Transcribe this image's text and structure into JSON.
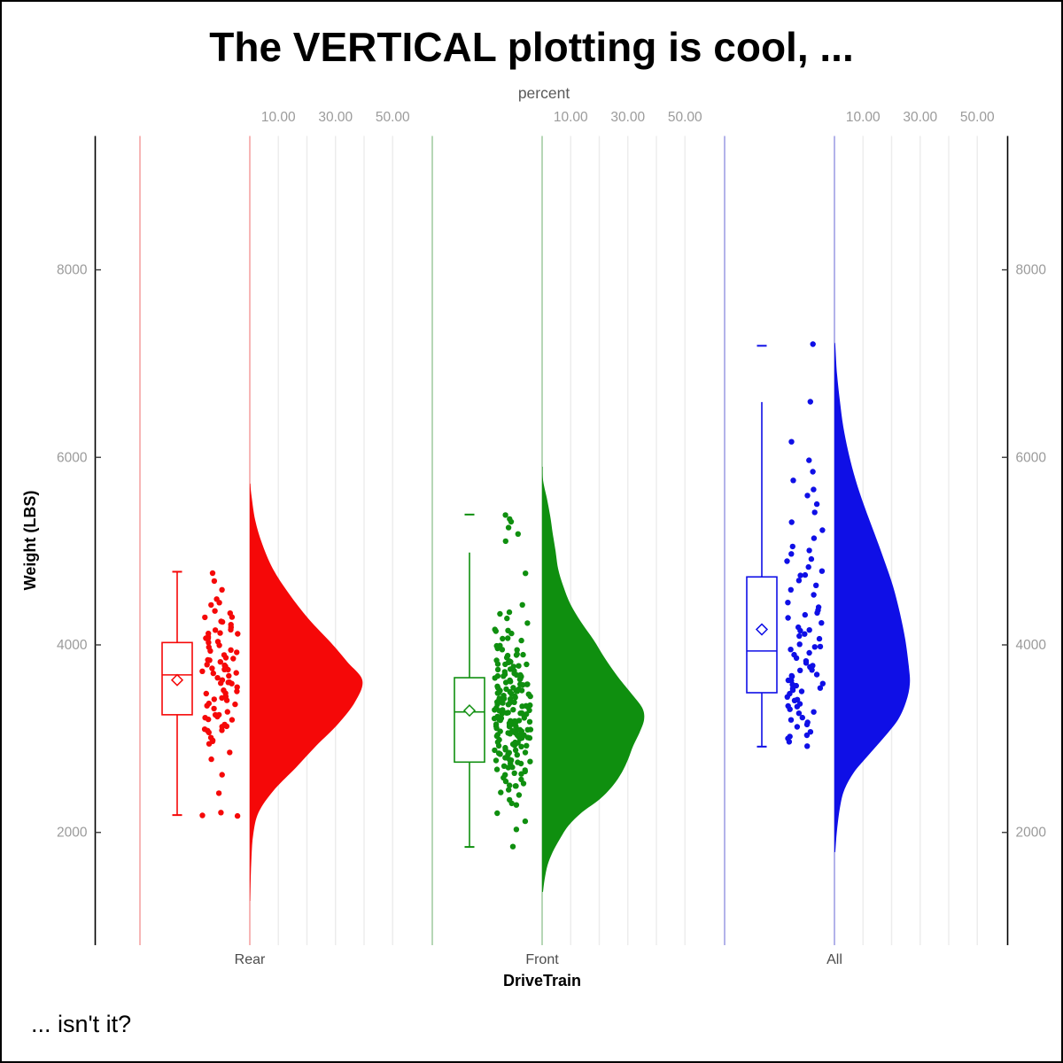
{
  "title": "The VERTICAL plotting is cool, ...",
  "footnote": "... isn't it?",
  "style": {
    "background": "#ffffff",
    "axis_line": "#000000",
    "gridline": "#ececec",
    "tick_label_color": "#9b9b9b",
    "top_axis_title_color": "#5a5a5a",
    "category_label_color": "#4c4c4c",
    "axis_title_color": "#000000",
    "box_fill": "#ffffff"
  },
  "chart_data": {
    "type": "raincloud (half-violin + box plot + jittered points)",
    "orientation": "vertical",
    "x_axis": {
      "label": "DriveTrain",
      "categories": [
        "Rear",
        "Front",
        "All"
      ]
    },
    "y_axis": {
      "label": "Weight (LBS)",
      "ticks": [
        2000,
        4000,
        6000,
        8000
      ],
      "shown_on": "both sides"
    },
    "top_axis": {
      "label": "percent",
      "tick_values": [
        10,
        30,
        50
      ],
      "tick_labels": [
        "10.00",
        "30.00",
        "50.00"
      ],
      "gridline_values": [
        10,
        20,
        30,
        40,
        50
      ],
      "repeats_per_category": true
    },
    "groups": [
      {
        "name": "Rear",
        "color": "#f50808",
        "tint": "#f7b6b6",
        "box": {
          "low": 2185,
          "q1": 3255,
          "median": 3680,
          "q3": 4025,
          "high": 4780,
          "cap_high": 4780,
          "mean": 3625
        },
        "violin_profile_weight_pct": [
          [
            5720,
            0.15
          ],
          [
            5590,
            0.6
          ],
          [
            5330,
            1.9
          ],
          [
            5080,
            4.3
          ],
          [
            4810,
            8.1
          ],
          [
            4550,
            13.6
          ],
          [
            4280,
            20.5
          ],
          [
            4020,
            28.5
          ],
          [
            3820,
            34.1
          ],
          [
            3620,
            39.4
          ],
          [
            3395,
            36.9
          ],
          [
            3160,
            31.0
          ],
          [
            2925,
            23.3
          ],
          [
            2690,
            16.1
          ],
          [
            2450,
            8.4
          ],
          [
            2215,
            3.1
          ],
          [
            1980,
            1.2
          ],
          [
            1740,
            0.6
          ],
          [
            1505,
            0.3
          ],
          [
            1270,
            0.1
          ]
        ],
        "jitter": {
          "n": 90,
          "seed": 7,
          "quantiles": [
            [
              0,
              2165
            ],
            [
              0.022,
              2200
            ],
            [
              0.033,
              2395
            ],
            [
              0.05,
              2720
            ],
            [
              0.08,
              2950
            ],
            [
              0.14,
              3090
            ],
            [
              0.25,
              3255
            ],
            [
              0.35,
              3450
            ],
            [
              0.5,
              3680
            ],
            [
              0.65,
              3860
            ],
            [
              0.75,
              4030
            ],
            [
              0.85,
              4180
            ],
            [
              0.92,
              4330
            ],
            [
              0.97,
              4520
            ],
            [
              1,
              4780
            ]
          ]
        }
      },
      {
        "name": "Front",
        "color": "#0f8f0f",
        "tint": "#b6d7b6",
        "box": {
          "low": 1845,
          "q1": 2750,
          "median": 3285,
          "q3": 3650,
          "high": 4985,
          "cap_high": 5390,
          "mean": 3300
        },
        "violin_profile_weight_pct": [
          [
            5900,
            0.15
          ],
          [
            5760,
            0.3
          ],
          [
            5570,
            1.6
          ],
          [
            5380,
            2.8
          ],
          [
            5190,
            3.7
          ],
          [
            5000,
            4.7
          ],
          [
            4810,
            5.6
          ],
          [
            4625,
            7.4
          ],
          [
            4435,
            9.9
          ],
          [
            4245,
            13.6
          ],
          [
            4055,
            18.0
          ],
          [
            3870,
            21.7
          ],
          [
            3680,
            26.0
          ],
          [
            3490,
            31.0
          ],
          [
            3330,
            35.0
          ],
          [
            3205,
            35.7
          ],
          [
            3065,
            34.1
          ],
          [
            2925,
            31.9
          ],
          [
            2780,
            30.1
          ],
          [
            2640,
            27.9
          ],
          [
            2500,
            24.8
          ],
          [
            2355,
            20.2
          ],
          [
            2215,
            14.0
          ],
          [
            2075,
            9.3
          ],
          [
            1930,
            6.2
          ],
          [
            1790,
            3.7
          ],
          [
            1650,
            1.9
          ],
          [
            1505,
            0.9
          ],
          [
            1365,
            0.3
          ]
        ],
        "jitter": {
          "n": 200,
          "seed": 11,
          "quantiles": [
            [
              0,
              1850
            ],
            [
              0.005,
              2035
            ],
            [
              0.02,
              2290
            ],
            [
              0.05,
              2480
            ],
            [
              0.1,
              2650
            ],
            [
              0.18,
              2830
            ],
            [
              0.28,
              3000
            ],
            [
              0.4,
              3140
            ],
            [
              0.5,
              3285
            ],
            [
              0.6,
              3420
            ],
            [
              0.7,
              3560
            ],
            [
              0.78,
              3690
            ],
            [
              0.85,
              3830
            ],
            [
              0.9,
              3980
            ],
            [
              0.94,
              4180
            ],
            [
              0.96,
              4360
            ],
            [
              0.965,
              4425
            ],
            [
              0.975,
              5120
            ],
            [
              0.985,
              5260
            ],
            [
              0.995,
              5360
            ],
            [
              1,
              5390
            ]
          ]
        }
      },
      {
        "name": "All",
        "color": "#0f0fe6",
        "tint": "#b3b3ea",
        "box": {
          "low": 2915,
          "q1": 3490,
          "median": 3935,
          "q3": 4725,
          "high": 6590,
          "cap_high": 7190,
          "mean": 4165
        },
        "violin_profile_weight_pct": [
          [
            7220,
            0.1
          ],
          [
            7190,
            0.3
          ],
          [
            6890,
            0.9
          ],
          [
            6605,
            1.9
          ],
          [
            6325,
            3.1
          ],
          [
            6040,
            5.0
          ],
          [
            5760,
            7.4
          ],
          [
            5475,
            10.5
          ],
          [
            5190,
            14.0
          ],
          [
            4905,
            17.4
          ],
          [
            4625,
            20.5
          ],
          [
            4340,
            22.9
          ],
          [
            4055,
            24.8
          ],
          [
            3775,
            26.0
          ],
          [
            3585,
            26.4
          ],
          [
            3395,
            25.1
          ],
          [
            3205,
            22.3
          ],
          [
            3015,
            17.4
          ],
          [
            2830,
            12.1
          ],
          [
            2640,
            6.8
          ],
          [
            2450,
            3.4
          ],
          [
            2260,
            1.9
          ],
          [
            2025,
            0.9
          ],
          [
            1790,
            0.3
          ]
        ],
        "jitter": {
          "n": 85,
          "seed": 13,
          "quantiles": [
            [
              0,
              2915
            ],
            [
              0.04,
              3030
            ],
            [
              0.1,
              3190
            ],
            [
              0.18,
              3360
            ],
            [
              0.25,
              3490
            ],
            [
              0.35,
              3640
            ],
            [
              0.5,
              3935
            ],
            [
              0.6,
              4180
            ],
            [
              0.68,
              4420
            ],
            [
              0.75,
              4725
            ],
            [
              0.8,
              4890
            ],
            [
              0.85,
              5080
            ],
            [
              0.9,
              5460
            ],
            [
              0.94,
              5760
            ],
            [
              0.97,
              6000
            ],
            [
              0.985,
              6420
            ],
            [
              1,
              7190
            ]
          ]
        }
      }
    ]
  }
}
